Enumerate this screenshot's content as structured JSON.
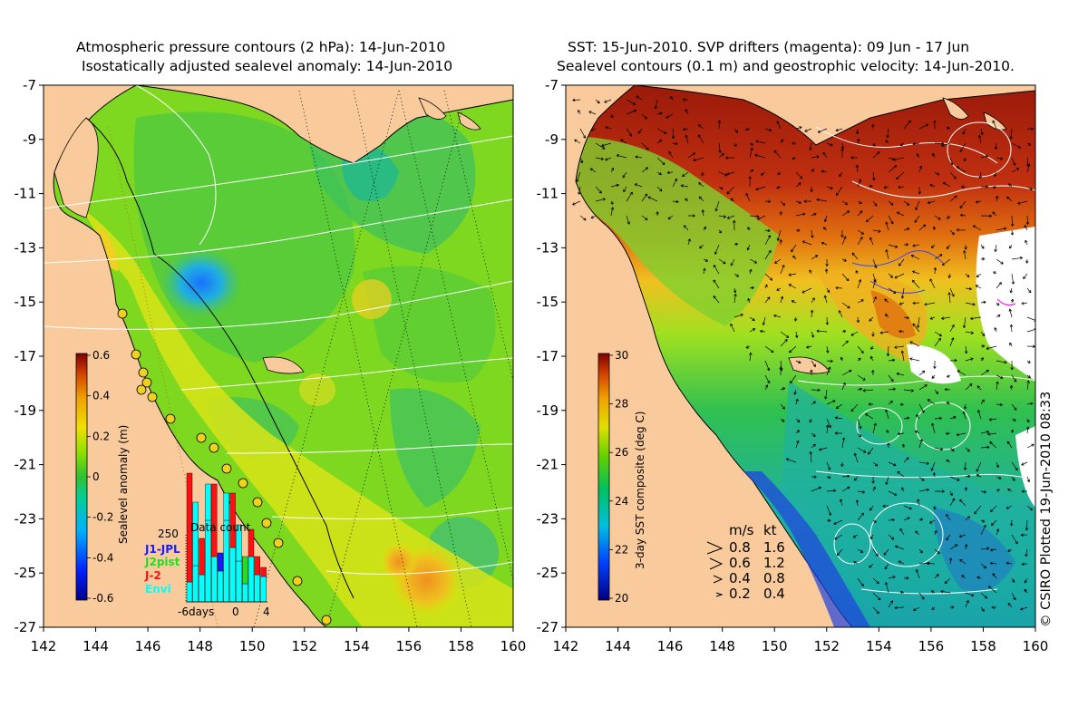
{
  "left_panel": {
    "title_line1": "Atmospheric pressure contours (2 hPa): 14-Jun-2010",
    "title_line2": "Isostatically adjusted sealevel anomaly: 14-Jun-2010",
    "colorbar": {
      "label": "Sealevel anomaly (m)",
      "ticks": [
        "0.6",
        "0.4",
        "0.2",
        "0",
        "-0.2",
        "-0.4",
        "-0.6"
      ]
    },
    "inset": {
      "title": "Data count",
      "ymax_label": "250",
      "legend": [
        {
          "name": "J1-JPL",
          "color": "#1a1aff"
        },
        {
          "name": "J2pist",
          "color": "#22dd22"
        },
        {
          "name": "J-2",
          "color": "#ff1010"
        },
        {
          "name": "Envi",
          "color": "#00ffff"
        }
      ],
      "xlabels": [
        "-6days",
        "0",
        "4"
      ]
    }
  },
  "right_panel": {
    "title_line1": "SST: 15-Jun-2010. SVP drifters (magenta): 09 Jun - 17 Jun",
    "title_line2": "Sealevel contours (0.1 m) and geostrophic velocity: 14-Jun-2010.",
    "colorbar": {
      "label": "3-day SST composite (deg C)",
      "ticks": [
        "30",
        "28",
        "26",
        "24",
        "22",
        "20"
      ]
    },
    "velocity_legend": {
      "header_ms": "m/s",
      "header_kt": "kt",
      "rows": [
        {
          "ms": "0.8",
          "kt": "1.6"
        },
        {
          "ms": "0.6",
          "kt": "1.2"
        },
        {
          "ms": "0.4",
          "kt": "0.8"
        },
        {
          "ms": "0.2",
          "kt": "0.4"
        }
      ]
    }
  },
  "axes": {
    "x_ticks": [
      "142",
      "144",
      "146",
      "148",
      "150",
      "152",
      "154",
      "156",
      "158",
      "160"
    ],
    "y_ticks": [
      "-7",
      "-9",
      "-11",
      "-13",
      "-15",
      "-17",
      "-19",
      "-21",
      "-23",
      "-25",
      "-27"
    ],
    "lon_range": [
      142,
      160
    ],
    "lat_range": [
      -27,
      -7
    ]
  },
  "credit": "© CSIRO Plotted 19-Jun-2010 08:33",
  "colors": {
    "land": "#f9cb9c",
    "coast": "#000000",
    "contour": "#ffffff"
  }
}
